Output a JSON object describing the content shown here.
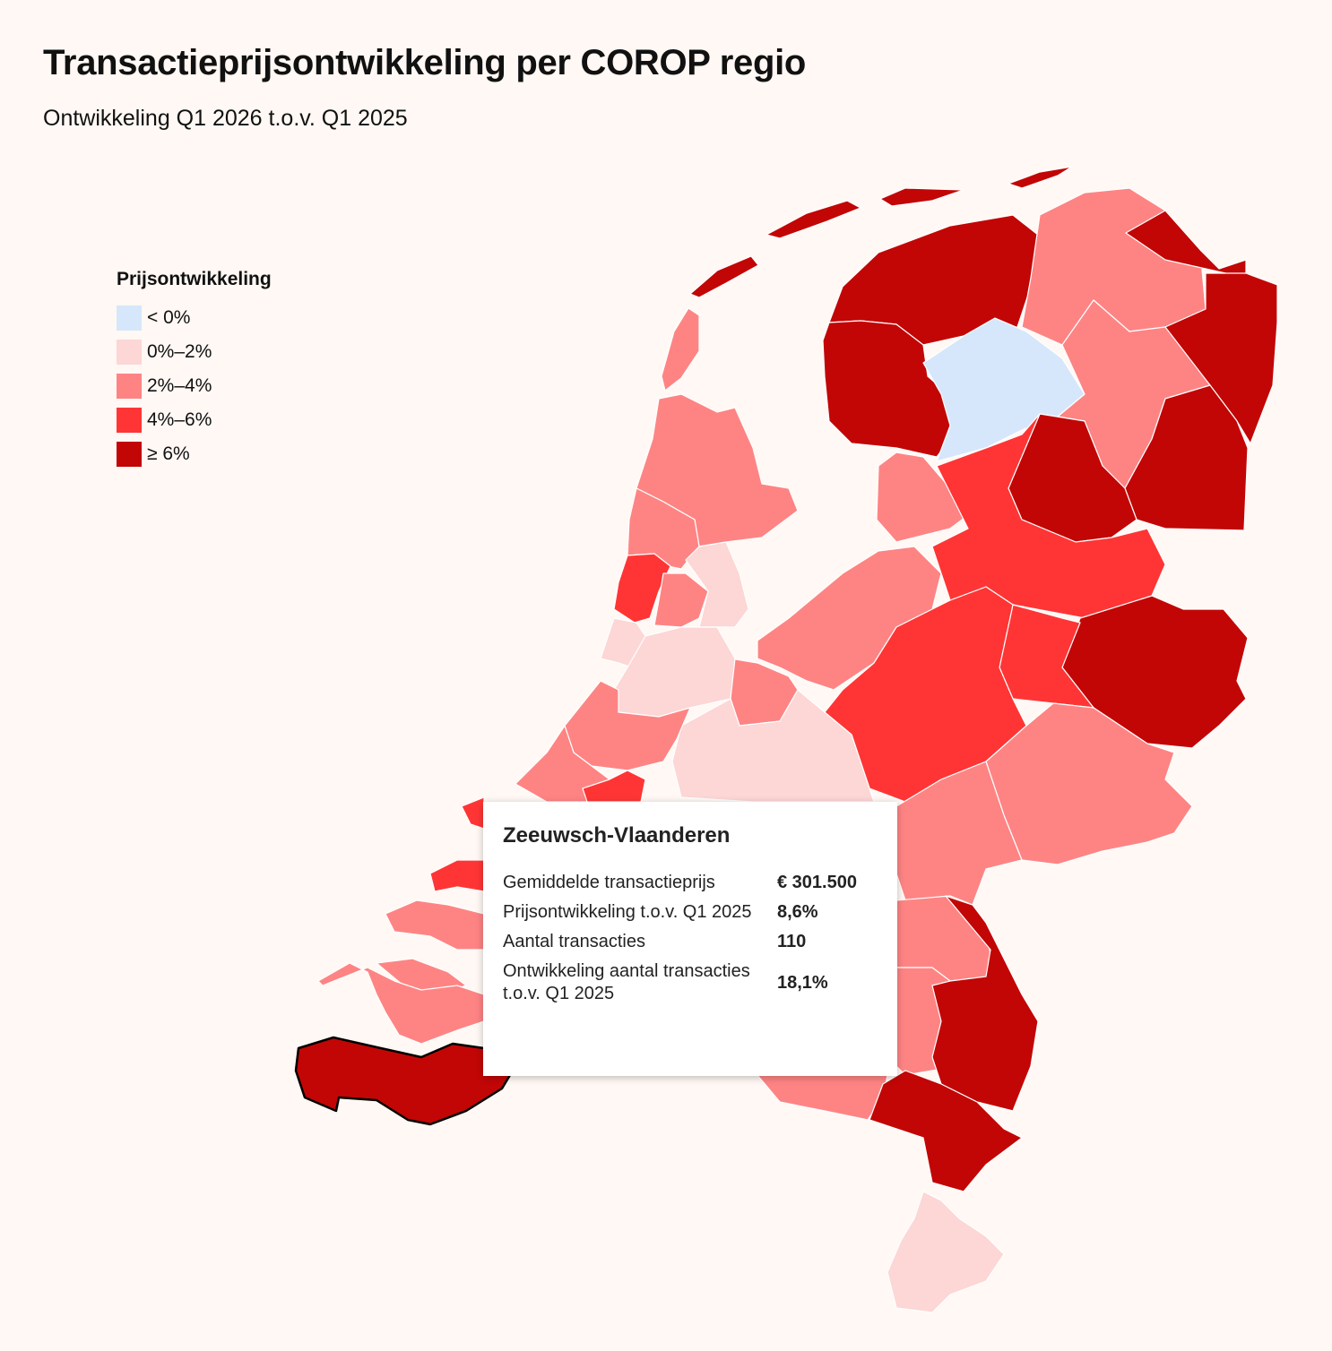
{
  "header": {
    "title": "Transactieprijsontwikkeling per COROP regio",
    "subtitle": "Ontwikkeling Q1 2026 t.o.v. Q1 2025"
  },
  "legend": {
    "title": "Prijsontwikkeling",
    "items": [
      {
        "label": "< 0%",
        "color": "#d6e7fb"
      },
      {
        "label": "0%–2%",
        "color": "#fdd6d6"
      },
      {
        "label": "2%–4%",
        "color": "#fe8484"
      },
      {
        "label": "4%–6%",
        "color": "#ff3535"
      },
      {
        "label": "≥ 6%",
        "color": "#c20606"
      }
    ]
  },
  "tooltip": {
    "region": "Zeeuwsch-Vlaanderen",
    "rows": [
      {
        "label": "Gemiddelde transactieprijs",
        "value": "€ 301.500"
      },
      {
        "label": "Prijsontwikkeling t.o.v. Q1 2025",
        "value": "8,6%"
      },
      {
        "label": "Aantal transacties",
        "value": "110"
      },
      {
        "label": "Ontwikkeling aantal transacties t.o.v. Q1 2025",
        "value": "18,1%"
      }
    ]
  }
}
